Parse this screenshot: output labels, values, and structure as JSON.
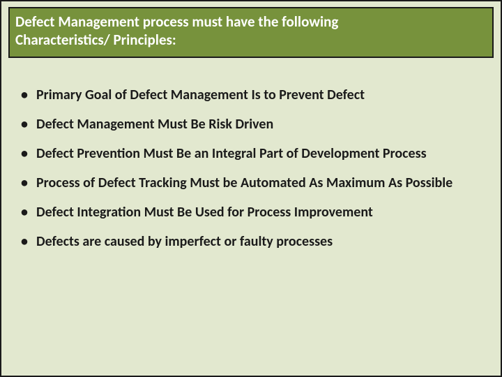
{
  "colors": {
    "page_background": "#e2e8cf",
    "header_background": "#77923c",
    "header_text": "#ffffff",
    "border": "#1a1a1a",
    "body_text": "#1a1a1a"
  },
  "typography": {
    "header_fontsize_pt": 16,
    "header_fontweight": 700,
    "bullet_fontsize_pt": 15,
    "bullet_fontweight": 700,
    "font_family": "Calibri"
  },
  "header": {
    "line1": "Defect Management process must have the following",
    "line2": "Characteristics/ Principles:"
  },
  "bullets": [
    "Primary Goal of Defect Management Is to Prevent Defect",
    "Defect Management Must Be Risk Driven",
    "Defect Prevention Must Be an Integral Part of Development Process",
    "Process of Defect Tracking Must be Automated As Maximum As Possible",
    "Defect Integration Must Be Used for Process Improvement",
    "Defects are caused by imperfect or faulty processes"
  ]
}
